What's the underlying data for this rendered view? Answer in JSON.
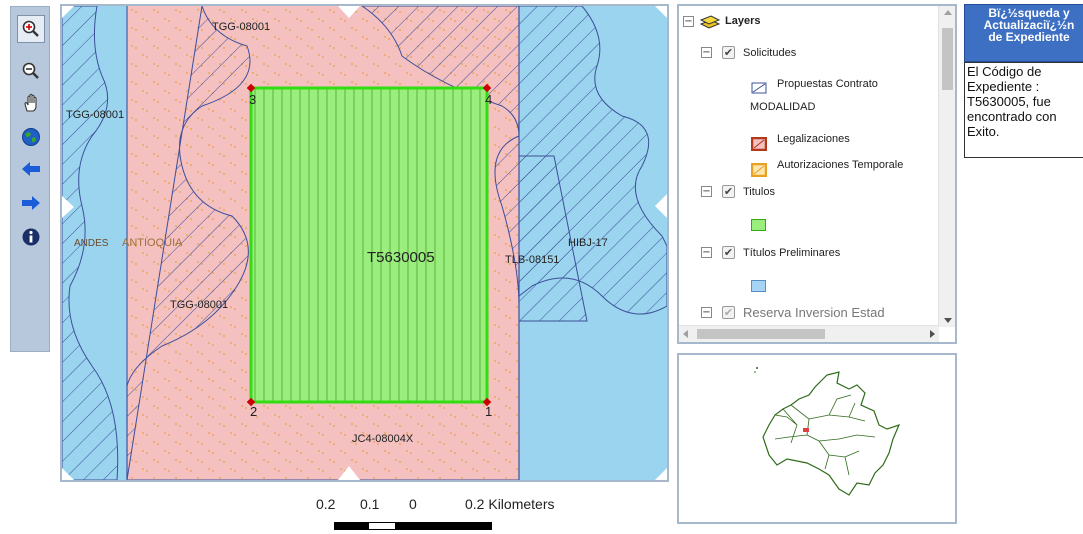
{
  "toolbar": {
    "tools": [
      {
        "name": "zoom-in-icon",
        "glyph": "⊕",
        "active": true
      },
      {
        "name": "zoom-out-icon",
        "glyph": "⊖",
        "active": false
      },
      {
        "name": "pan-hand-icon",
        "glyph": "✋",
        "active": false
      },
      {
        "name": "full-extent-globe-icon",
        "glyph": "●",
        "active": false
      },
      {
        "name": "previous-extent-arrow-icon",
        "glyph": "⬅",
        "active": false
      },
      {
        "name": "next-extent-arrow-icon",
        "glyph": "➡",
        "active": false
      },
      {
        "name": "identify-info-icon",
        "glyph": "ℹ",
        "active": false
      }
    ]
  },
  "map": {
    "labels": {
      "tgg_top": "TGG-08001",
      "tgg_left": "TGG-08001",
      "tgg_bottom": "TGG-08001",
      "andes": "ANDES",
      "antioquia": "ANTIOQUIA",
      "parcel": "T5630005",
      "tlb": "TLB-08151",
      "hibj": "HIBJ-17",
      "jc4": "JC4-08004X",
      "corner1": "1",
      "corner2": "2",
      "corner3": "3",
      "corner4": "4"
    },
    "colors": {
      "water": "#9bd4ee",
      "pink": "#f4c0c0",
      "parcel": "#9aee7e",
      "parcel_border": "#33dd11",
      "hatch": "#3c4f9a",
      "corner": "#cc0000"
    }
  },
  "scalebar": {
    "label_02": "0.2",
    "label_01": "0.1",
    "label_0": "0",
    "label_end": "0.2 Kilometers"
  },
  "toc": {
    "root": "Layers",
    "solicitudes": "Solicitudes",
    "propuestas": "Propuestas Contrato",
    "modalidad": "MODALIDAD",
    "legalizaciones": "Legalizaciones",
    "autorizaciones": "Autorizaciones Temporale",
    "titulos": "Titulos",
    "titulos_prelim": "Títulos Preliminares",
    "reserva": "Reserva Inversion Estad",
    "expand_glyph": "−",
    "check_glyph": "✔",
    "colors": {
      "legalizaciones": "#b03a1a",
      "autorizaciones": "#e8a020",
      "titulos": "#9aee7e",
      "titulos_prelim": "#a8d4f4"
    }
  },
  "overview": {
    "country_color": "#2e6b1a",
    "marker_color": "#e04040"
  },
  "search_panel": {
    "title_line1": "Bï¿½squeda y",
    "title_line2": "Actualizaciï¿½n",
    "title_line3": "de Expediente",
    "message_line1": "El Código de",
    "message_line2": "Expediente :",
    "message_line3": "T5630005, fue",
    "message_line4": "encontrado con",
    "message_line5": "Exito."
  }
}
